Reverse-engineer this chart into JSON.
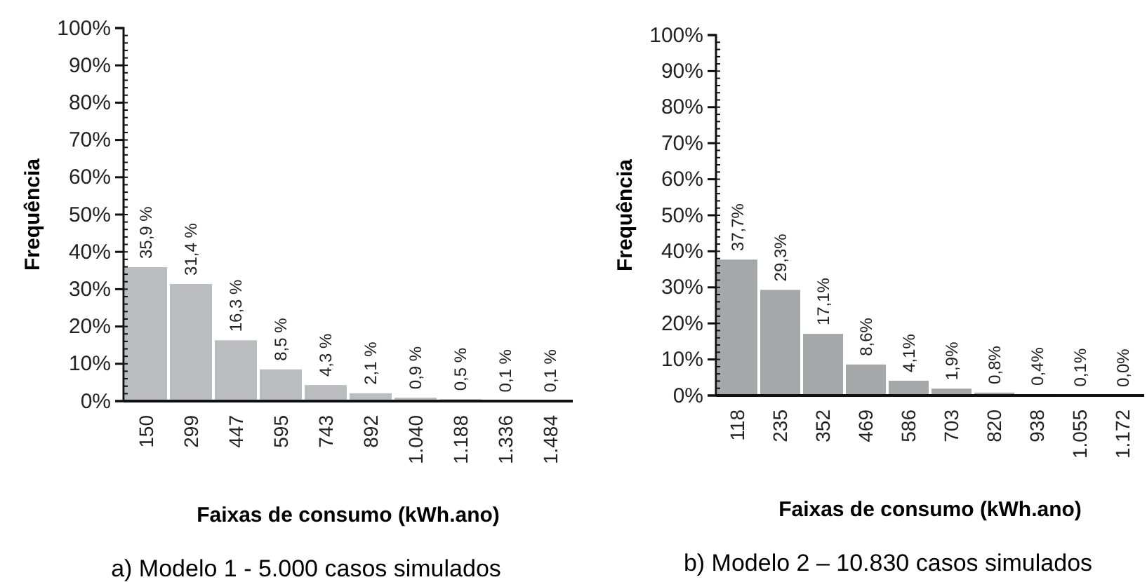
{
  "chart_data": [
    {
      "type": "bar",
      "title": "a) Modelo 1 - 5.000 casos simulados",
      "xlabel": "Faixas de consumo (kWh.ano)",
      "ylabel": "Frequência",
      "categories": [
        "150",
        "299",
        "447",
        "595",
        "743",
        "892",
        "1.040",
        "1.188",
        "1.336",
        "1.484"
      ],
      "series": [
        {
          "color": "#bcbdc0",
          "values": [
            35.9,
            31.4,
            16.3,
            8.5,
            4.3,
            2.1,
            0.9,
            0.5,
            0.1,
            0.1
          ],
          "value_labels": [
            "35,9 %",
            "31,4 %",
            "16,3 %",
            "8,5 %",
            "4,3 %",
            "2,1 %",
            "0,9 %",
            "0,5 %",
            "0,1 %",
            "0,1 %"
          ]
        }
      ],
      "ylim": [
        0,
        100
      ],
      "yticks": [
        {
          "value": 0,
          "label": "0%"
        },
        {
          "value": 10,
          "label": "10%"
        },
        {
          "value": 20,
          "label": "20%"
        },
        {
          "value": 30,
          "label": "30%"
        },
        {
          "value": 40,
          "label": "40%"
        },
        {
          "value": 50,
          "label": "50%"
        },
        {
          "value": 60,
          "label": "60%"
        },
        {
          "value": 70,
          "label": "70%"
        },
        {
          "value": 80,
          "label": "80%"
        },
        {
          "value": 90,
          "label": "90%"
        },
        {
          "value": 100,
          "label": "100%"
        }
      ],
      "grid": false
    },
    {
      "type": "bar",
      "title": "b) Modelo 2 – 10.830 casos simulados",
      "xlabel": "Faixas de consumo  (kWh.ano)",
      "ylabel": "Frequência",
      "categories": [
        "118",
        "235",
        "352",
        "469",
        "586",
        "703",
        "820",
        "938",
        "1.055",
        "1.172"
      ],
      "series": [
        {
          "color": "#a6a7a9",
          "values": [
            37.7,
            29.3,
            17.1,
            8.6,
            4.1,
            1.9,
            0.8,
            0.4,
            0.1,
            0.0
          ],
          "value_labels": [
            "37,7%",
            "29,3%",
            "17,1%",
            "8,6%",
            "4,1%",
            "1,9%",
            "0,8%",
            "0,4%",
            "0,1%",
            "0,0%"
          ]
        }
      ],
      "ylim": [
        0,
        100
      ],
      "yticks": [
        {
          "value": 0,
          "label": "0%"
        },
        {
          "value": 10,
          "label": "10%"
        },
        {
          "value": 20,
          "label": "20%"
        },
        {
          "value": 30,
          "label": "30%"
        },
        {
          "value": 40,
          "label": "40%"
        },
        {
          "value": 50,
          "label": "50%"
        },
        {
          "value": 60,
          "label": "60%"
        },
        {
          "value": 70,
          "label": "70%"
        },
        {
          "value": 80,
          "label": "80%"
        },
        {
          "value": 90,
          "label": "90%"
        },
        {
          "value": 100,
          "label": "100%"
        }
      ],
      "grid": false
    }
  ]
}
